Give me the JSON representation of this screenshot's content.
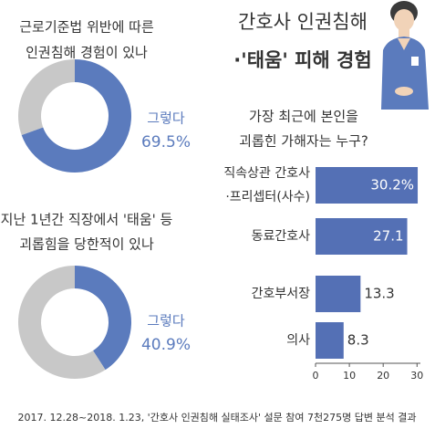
{
  "title": [
    "간호사 인권침해",
    "·'태움' 피해 경험"
  ],
  "source": "2017. 12.28~2018. 1.23, '간호사 인권침해 실태조사' 설문 참여 7천275명 답변 분석 결과",
  "chart_data": [
    {
      "type": "donut",
      "title": [
        "근로기준법 위반에 따른",
        "인권침해 경험이 있나"
      ],
      "categories": [
        "그렇다",
        null
      ],
      "values": [
        69.5,
        30.5
      ],
      "value_labels": [
        "69.5%",
        null
      ],
      "colors": [
        "#5b7bbd",
        "#c8c8c8"
      ]
    },
    {
      "type": "donut",
      "title": [
        "지난 1년간 직장에서 '태움' 등",
        "괴롭힘을 당한적이 있나"
      ],
      "categories": [
        "그렇다",
        null
      ],
      "values": [
        40.9,
        59.1
      ],
      "value_labels": [
        "40.9%",
        null
      ],
      "colors": [
        "#5b7bbd",
        "#c8c8c8"
      ]
    },
    {
      "type": "hbar",
      "title": [
        "가장 최근에 본인을",
        "괴롭힌 가해자는 누구?"
      ],
      "categories": [
        [
          "직속상관 간호사",
          "·프리셉터(사수)"
        ],
        [
          "동료간호사"
        ],
        [
          "간호부서장"
        ],
        [
          "의사"
        ]
      ],
      "values": [
        30.2,
        27.1,
        13.3,
        8.3
      ],
      "value_labels": [
        "30.2%",
        "27.1",
        "13.3",
        "8.3"
      ],
      "color": "#5470b5",
      "xlim": [
        0,
        31
      ],
      "xticks": [
        0,
        10,
        20,
        30
      ]
    }
  ]
}
